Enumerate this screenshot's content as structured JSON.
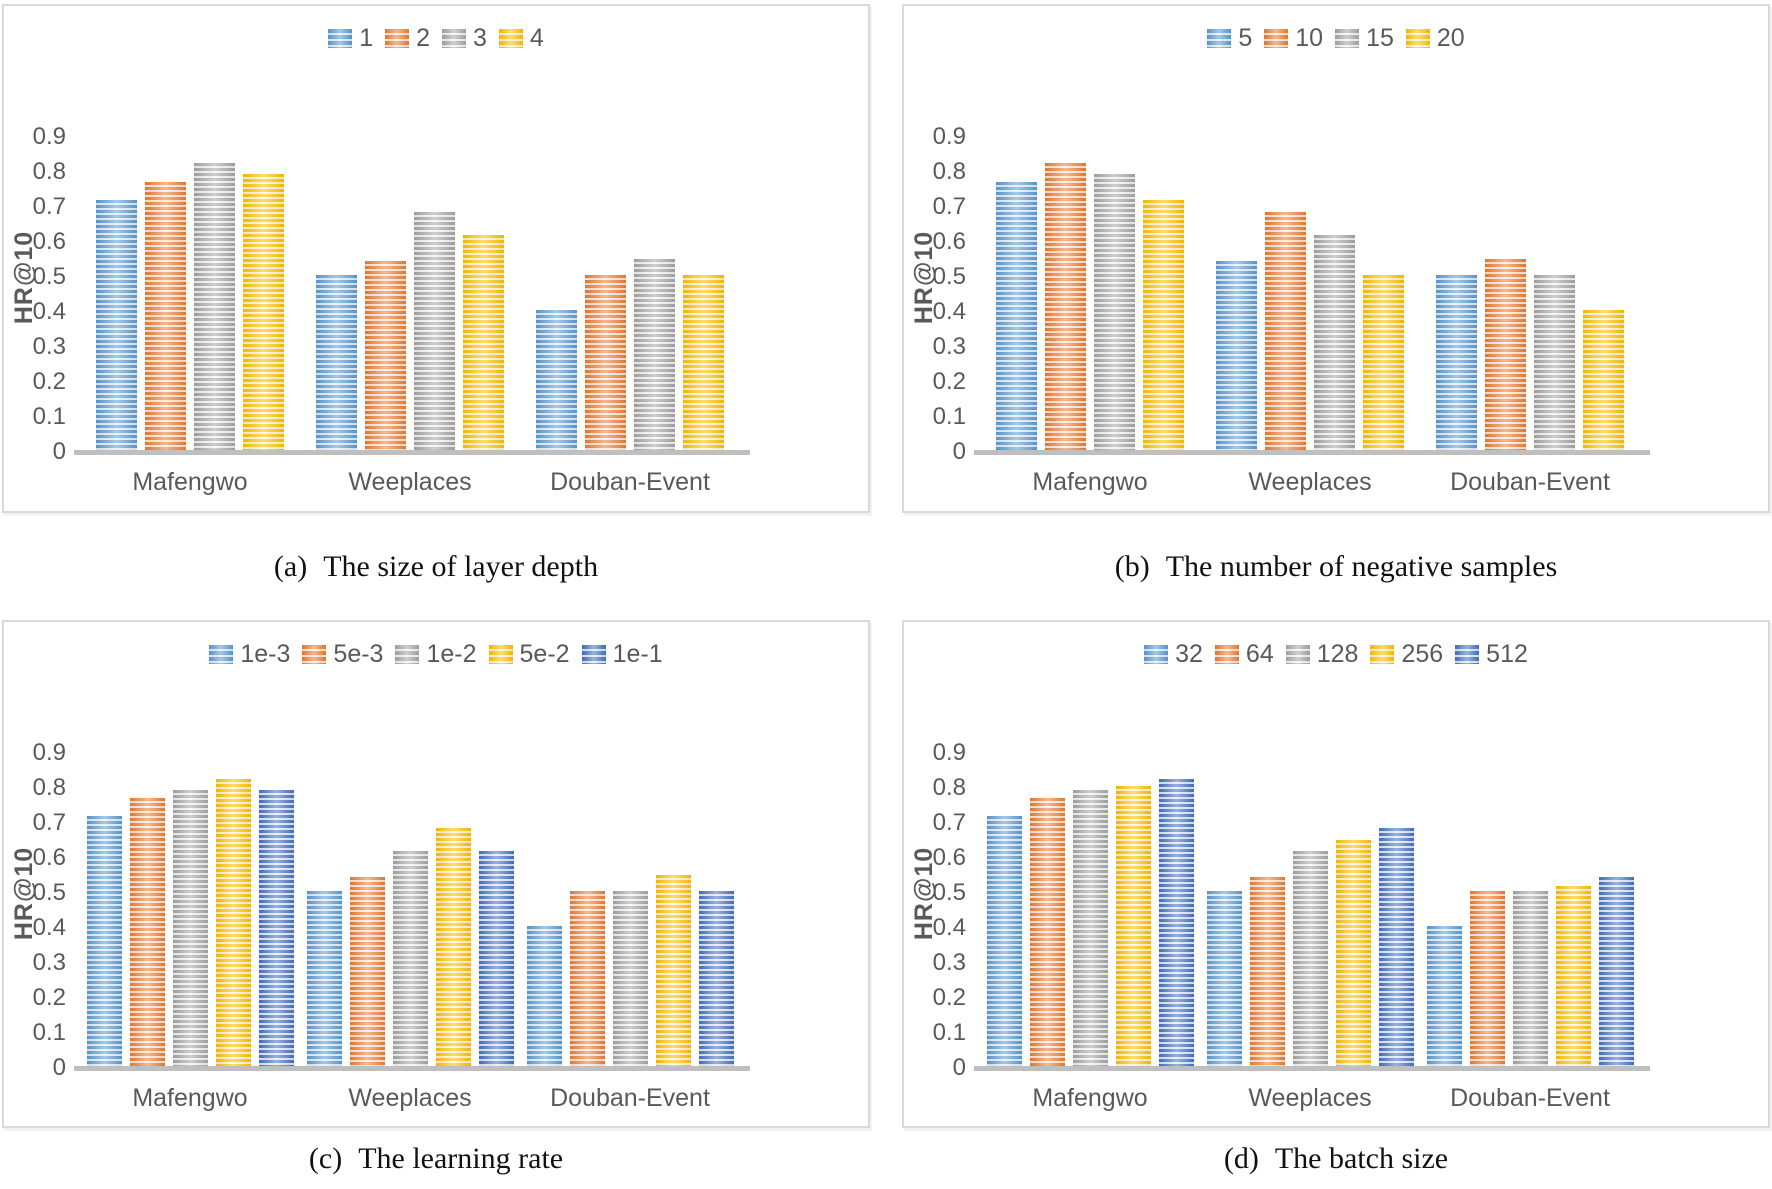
{
  "palette": {
    "blue": {
      "main": "#5b9bd5",
      "light": "#ddebf7"
    },
    "orange": {
      "main": "#ed7d31",
      "light": "#fce4d6"
    },
    "gray": {
      "main": "#a6a6a6",
      "light": "#f0f0f0"
    },
    "gold": {
      "main": "#ffc000",
      "light": "#fff2cc"
    },
    "darkblue": {
      "main": "#4472c4",
      "light": "#dae3f3"
    }
  },
  "axis": {
    "ytick_labels": [
      "0",
      "0.1",
      "0.2",
      "0.3",
      "0.4",
      "0.5",
      "0.6",
      "0.7",
      "0.8",
      "0.9"
    ],
    "ytick_values": [
      0,
      0.1,
      0.2,
      0.3,
      0.4,
      0.5,
      0.6,
      0.7,
      0.8,
      0.9
    ]
  },
  "chart_data": [
    {
      "type": "bar",
      "caption_prefix": "(a)",
      "caption_text": "The size of layer depth",
      "ylabel": "HR@10",
      "ylim": [
        0,
        0.9
      ],
      "grid": false,
      "legend_position": "top-center",
      "categories": [
        "Mafengwo",
        "Weeplaces",
        "Douban-Event"
      ],
      "series": [
        {
          "name": "1",
          "color": "blue",
          "values": [
            0.72,
            0.505,
            0.405
          ]
        },
        {
          "name": "2",
          "color": "orange",
          "values": [
            0.77,
            0.545,
            0.505
          ]
        },
        {
          "name": "3",
          "color": "gray",
          "values": [
            0.825,
            0.685,
            0.55
          ]
        },
        {
          "name": "4",
          "color": "gold",
          "values": [
            0.795,
            0.62,
            0.505
          ]
        }
      ]
    },
    {
      "type": "bar",
      "caption_prefix": "(b)",
      "caption_text": "The number of negative samples",
      "ylabel": "HR@10",
      "ylim": [
        0,
        0.9
      ],
      "grid": false,
      "legend_position": "top-center",
      "categories": [
        "Mafengwo",
        "Weeplaces",
        "Douban-Event"
      ],
      "series": [
        {
          "name": "5",
          "color": "blue",
          "values": [
            0.77,
            0.545,
            0.505
          ]
        },
        {
          "name": "10",
          "color": "orange",
          "values": [
            0.825,
            0.685,
            0.55
          ]
        },
        {
          "name": "15",
          "color": "gray",
          "values": [
            0.795,
            0.62,
            0.505
          ]
        },
        {
          "name": "20",
          "color": "gold",
          "values": [
            0.72,
            0.505,
            0.405
          ]
        }
      ]
    },
    {
      "type": "bar",
      "caption_prefix": "(c)",
      "caption_text": "The learning rate",
      "ylabel": "HR@10",
      "ylim": [
        0,
        0.9
      ],
      "grid": false,
      "legend_position": "top-center",
      "categories": [
        "Mafengwo",
        "Weeplaces",
        "Douban-Event"
      ],
      "series": [
        {
          "name": "1e-3",
          "color": "blue",
          "values": [
            0.72,
            0.505,
            0.405
          ]
        },
        {
          "name": "5e-3",
          "color": "orange",
          "values": [
            0.77,
            0.545,
            0.505
          ]
        },
        {
          "name": "1e-2",
          "color": "gray",
          "values": [
            0.795,
            0.62,
            0.505
          ]
        },
        {
          "name": "5e-2",
          "color": "gold",
          "values": [
            0.825,
            0.685,
            0.55
          ]
        },
        {
          "name": "1e-1",
          "color": "darkblue",
          "values": [
            0.795,
            0.62,
            0.505
          ]
        }
      ]
    },
    {
      "type": "bar",
      "caption_prefix": "(d)",
      "caption_text": "The batch size",
      "ylabel": "HR@10",
      "ylim": [
        0,
        0.9
      ],
      "grid": false,
      "legend_position": "top-center",
      "categories": [
        "Mafengwo",
        "Weeplaces",
        "Douban-Event"
      ],
      "series": [
        {
          "name": "32",
          "color": "blue",
          "values": [
            0.72,
            0.505,
            0.405
          ]
        },
        {
          "name": "64",
          "color": "orange",
          "values": [
            0.77,
            0.545,
            0.505
          ]
        },
        {
          "name": "128",
          "color": "gray",
          "values": [
            0.795,
            0.62,
            0.505
          ]
        },
        {
          "name": "256",
          "color": "gold",
          "values": [
            0.805,
            0.65,
            0.52
          ]
        },
        {
          "name": "512",
          "color": "darkblue",
          "values": [
            0.825,
            0.685,
            0.545
          ]
        }
      ]
    }
  ]
}
